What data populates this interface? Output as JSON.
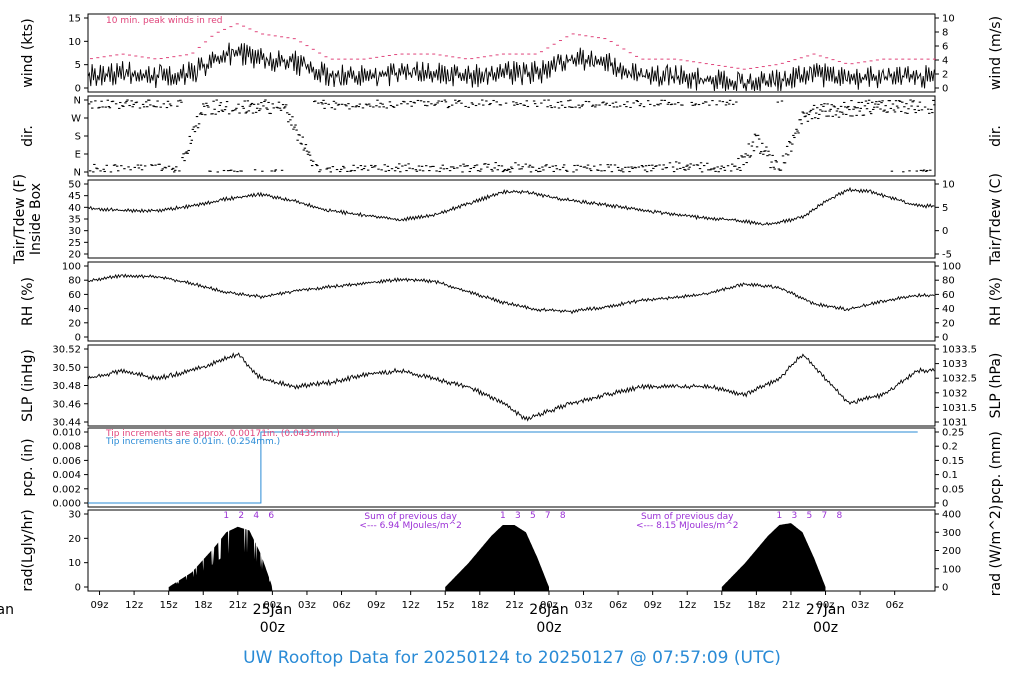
{
  "title": "UW Rooftop Data for 20250124  to  20250127 @ 07:57:09  (UTC)",
  "colors": {
    "peak": "#e0457b",
    "dir": "#000000",
    "tip1": "#e0457b",
    "tip2": "#2a8bd6",
    "rad_marks": "#9b30d6",
    "date": "#e0457b",
    "title": "#2a8bd6"
  },
  "time_axis": {
    "hours": [
      "09z",
      "12z",
      "15z",
      "18z",
      "21z",
      "00z",
      "03z",
      "06z",
      "09z",
      "12z",
      "15z",
      "18z",
      "21z",
      "00z",
      "03z",
      "06z",
      "09z",
      "12z",
      "15z",
      "18z",
      "21z",
      "00z",
      "03z",
      "06z"
    ],
    "date_labels": [
      "25Jan",
      "26Jan",
      "27Jan"
    ],
    "partial_label": "an"
  },
  "chart_data": [
    {
      "type": "line",
      "name": "wind",
      "ylabel_left": "wind (kts)",
      "ylabel_right": "wind (m/s)",
      "ylim": [
        0,
        20
      ],
      "left_ticks": [
        "0",
        "5",
        "10",
        "15"
      ],
      "right_ticks": [
        "0",
        "2",
        "4",
        "6",
        "8",
        "10"
      ],
      "annotation": "10 min. peak winds in red",
      "x": [
        0,
        3,
        6,
        9,
        11,
        13,
        15,
        18,
        21,
        24,
        27,
        30,
        33,
        36,
        39,
        42,
        45,
        48,
        51,
        54,
        57,
        60,
        63,
        66,
        69,
        72
      ],
      "values": [
        5,
        6,
        5,
        6,
        10,
        12,
        10,
        9,
        5,
        5,
        6,
        6,
        5,
        6,
        6,
        10,
        9,
        5,
        5,
        4,
        3,
        4,
        6,
        4,
        5,
        5
      ]
    },
    {
      "type": "scatter",
      "name": "dir.",
      "ylabel_left": "dir.",
      "ylabel_right": "dir.",
      "left_ticks": [
        "N",
        "E",
        "S",
        "W",
        "N"
      ],
      "x": [
        0,
        4,
        8,
        10,
        12,
        14,
        17,
        20,
        24,
        28,
        32,
        36,
        40,
        44,
        48,
        52,
        56,
        57,
        58,
        60,
        62,
        64,
        70
      ],
      "values": [
        20,
        15,
        25,
        345,
        350,
        355,
        350,
        10,
        15,
        25,
        20,
        30,
        20,
        15,
        25,
        35,
        20,
        90,
        180,
        20,
        300,
        330,
        350
      ]
    },
    {
      "type": "line",
      "name": "temperature",
      "ylabel_left": "Tair/Tdew (F)\nInside Box",
      "ylabel_right": "Tair/Tdew (C)",
      "ylim": [
        20,
        50
      ],
      "left_ticks": [
        "20",
        "25",
        "30",
        "35",
        "40",
        "45",
        "50"
      ],
      "right_ticks": [
        "-5",
        "0",
        "5",
        "10"
      ],
      "x": [
        0,
        3,
        6,
        9,
        12,
        15,
        18,
        21,
        24,
        27,
        30,
        33,
        36,
        38,
        41,
        44,
        47,
        50,
        53,
        56,
        59,
        62,
        64,
        66,
        68,
        70,
        72
      ],
      "values": [
        40,
        39,
        39,
        41,
        44,
        46,
        43,
        39,
        37,
        35,
        37,
        42,
        47,
        47,
        44,
        42,
        40,
        38,
        36,
        35,
        33,
        36,
        43,
        48,
        47,
        44,
        41
      ]
    },
    {
      "type": "line",
      "name": "rh",
      "ylabel_left": "RH (%)",
      "ylabel_right": "RH (%)",
      "ylim": [
        0,
        100
      ],
      "left_ticks": [
        "0",
        "20",
        "40",
        "60",
        "80",
        "100"
      ],
      "right_ticks": [
        "0",
        "20",
        "40",
        "60",
        "80",
        "100"
      ],
      "x": [
        0,
        3,
        6,
        9,
        12,
        15,
        18,
        21,
        24,
        27,
        30,
        33,
        36,
        39,
        42,
        45,
        48,
        51,
        54,
        57,
        60,
        63,
        66,
        69,
        72
      ],
      "values": [
        80,
        88,
        86,
        77,
        64,
        58,
        66,
        72,
        77,
        82,
        80,
        65,
        50,
        40,
        37,
        44,
        53,
        57,
        63,
        76,
        71,
        48,
        40,
        52,
        60
      ]
    },
    {
      "type": "line",
      "name": "slp",
      "ylabel_left": "SLP (inHg)",
      "ylabel_right": "SLP (hPa)",
      "ylim": [
        30.435,
        30.525
      ],
      "left_ticks": [
        "30.44",
        "30.46",
        "30.48",
        "30.50",
        "30.52"
      ],
      "right_ticks": [
        "1031",
        "1031.5",
        "1032",
        "1032.5",
        "1033",
        "1033.5"
      ],
      "x": [
        0,
        3,
        6,
        9,
        11,
        13,
        15,
        18,
        21,
        24,
        27,
        30,
        33,
        36,
        38,
        40,
        42,
        45,
        48,
        51,
        54,
        57,
        60,
        62,
        64,
        66,
        69,
        72
      ],
      "values": [
        30.49,
        30.5,
        30.49,
        30.5,
        30.51,
        30.52,
        30.49,
        30.48,
        30.485,
        30.495,
        30.5,
        30.49,
        30.48,
        30.46,
        30.44,
        30.45,
        30.46,
        30.47,
        30.48,
        30.48,
        30.48,
        30.47,
        30.49,
        30.52,
        30.49,
        30.46,
        30.47,
        30.5
      ]
    },
    {
      "type": "line",
      "name": "pcp",
      "ylabel_left": "pcp. (in)",
      "ylabel_right": "pcp. (mm)",
      "ylim": [
        0,
        0.01
      ],
      "left_ticks": [
        "0.000",
        "0.002",
        "0.004",
        "0.006",
        "0.008",
        "0.010"
      ],
      "right_ticks": [
        "0",
        "0.05",
        "0.1",
        "0.15",
        "0.2",
        "0.25"
      ],
      "annotation_1": "Tip increments are approx. 0.00171in. (0.0435mm.)",
      "annotation_2": "Tip increments are 0.01in. (0.254mm.)",
      "x": [
        0,
        15,
        15,
        72
      ],
      "values": [
        0,
        0,
        0.01,
        0.01
      ]
    },
    {
      "type": "area",
      "name": "rad",
      "ylabel_left": "rad(Lgly/hr)",
      "ylabel_right": "rad (W/m^2)",
      "ylim": [
        0,
        40
      ],
      "left_ticks": [
        "0",
        "10",
        "20",
        "30"
      ],
      "right_ticks": [
        "0",
        "100",
        "200",
        "300",
        "400"
      ],
      "hour_marks": [
        "1",
        "2",
        "3",
        "4",
        "5",
        "6",
        "7",
        "8"
      ],
      "day_labels": [
        "1",
        "2",
        "4",
        "6",
        "1",
        "3",
        "5",
        "7",
        "8",
        "1",
        "3",
        "5",
        "7",
        "8"
      ],
      "sum_text": "Sum of previous day",
      "sum_values": [
        "<--- 6.94 MJoules/m^2",
        "<--- 8.15 MJoules/m^2"
      ],
      "days": [
        {
          "x": [
            7,
            9,
            11,
            12,
            13,
            14,
            15,
            16
          ],
          "values": [
            0,
            8,
            22,
            30,
            33,
            31,
            18,
            0
          ]
        },
        {
          "x": [
            31,
            33,
            35,
            36,
            37,
            38,
            39,
            40
          ],
          "values": [
            0,
            13,
            28,
            34,
            34,
            30,
            16,
            0
          ]
        },
        {
          "x": [
            55,
            57,
            59,
            60,
            61,
            62,
            63,
            64
          ],
          "values": [
            0,
            13,
            28,
            34,
            35,
            30,
            16,
            0
          ]
        }
      ]
    }
  ]
}
